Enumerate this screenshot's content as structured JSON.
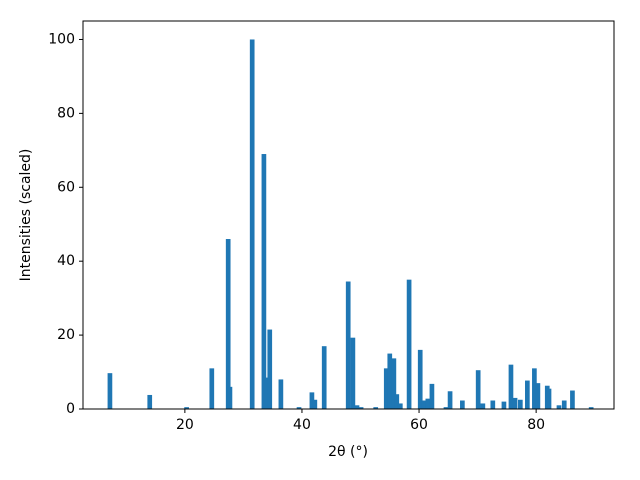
{
  "chart_data": {
    "type": "bar",
    "xlabel": "2θ (°)",
    "ylabel": "Intensities (scaled)",
    "color": "#1f77b4",
    "bar_width": 0.8,
    "x": [
      7.2,
      14.0,
      20.3,
      24.6,
      27.4,
      27.7,
      31.5,
      33.5,
      34.0,
      34.5,
      36.4,
      39.5,
      41.7,
      42.2,
      43.8,
      47.9,
      48.7,
      49.4,
      50.1,
      52.6,
      54.4,
      55.0,
      55.7,
      56.2,
      56.8,
      58.3,
      60.2,
      60.9,
      61.5,
      62.2,
      64.6,
      65.3,
      67.4,
      70.1,
      70.9,
      72.6,
      74.5,
      75.7,
      76.4,
      77.3,
      78.5,
      79.7,
      80.3,
      81.9,
      82.2,
      83.9,
      84.8,
      86.2,
      89.4
    ],
    "values": [
      9.7,
      3.8,
      0.5,
      11,
      46,
      6,
      100,
      69,
      8.5,
      21.5,
      8,
      0.5,
      4.5,
      2.5,
      17,
      34.5,
      19.3,
      1,
      0.5,
      0.5,
      11,
      15,
      13.7,
      4,
      1.5,
      35,
      16,
      2.3,
      2.8,
      6.8,
      0.5,
      4.8,
      2.3,
      10.5,
      1.5,
      2.3,
      2,
      12,
      3,
      2.5,
      7.7,
      11,
      7,
      6.3,
      5.5,
      1,
      2.3,
      5,
      0.5
    ],
    "xlim": [
      2.6,
      93.3
    ],
    "ylim": [
      0,
      105
    ],
    "xticks": [
      20,
      40,
      60,
      80
    ],
    "yticks": [
      0,
      20,
      40,
      60,
      80,
      100
    ]
  }
}
